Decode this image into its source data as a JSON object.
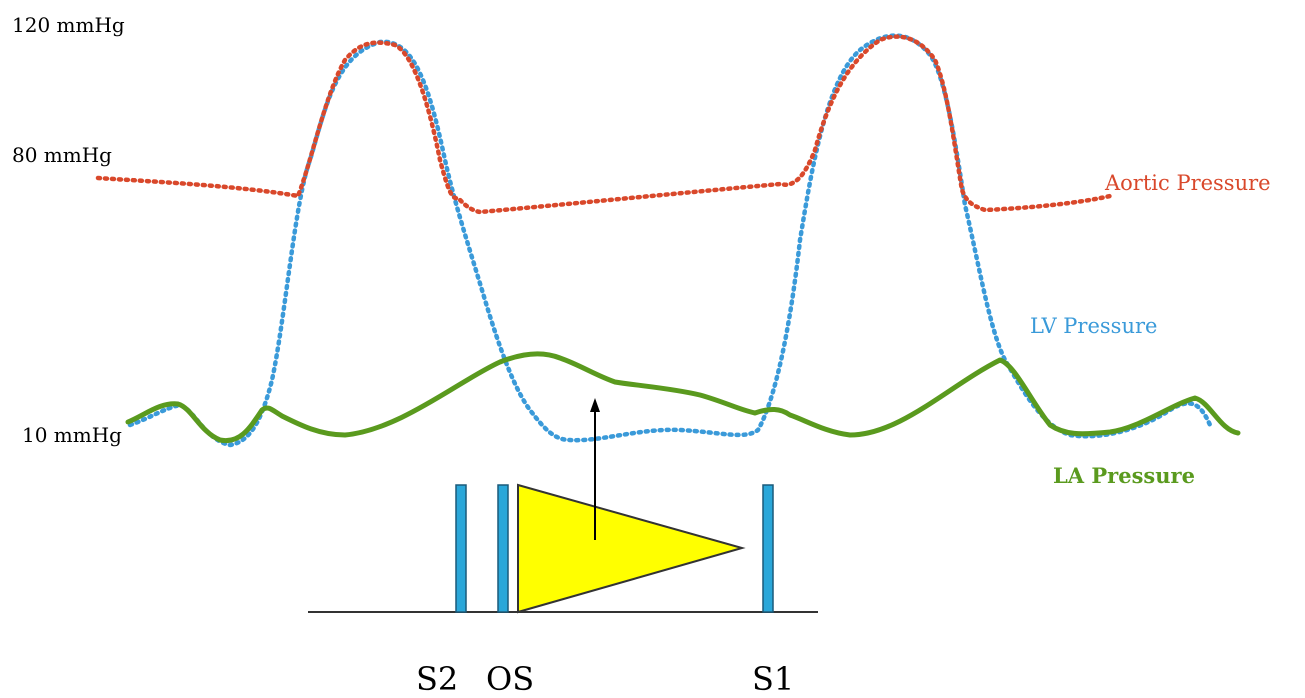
{
  "y_axis": {
    "high": "120 mmHg",
    "mid": "80 mmHg",
    "low": "10 mmHg"
  },
  "curves": {
    "aortic": {
      "label": "Aortic Pressure",
      "color": "#d9482b"
    },
    "lv": {
      "label": "LV Pressure",
      "color": "#3a9ad9"
    },
    "la": {
      "label": "LA Pressure",
      "color": "#5a9a1e"
    }
  },
  "heart_sounds": {
    "s2": "S2",
    "os": "OS",
    "s1": "S1",
    "bar_color": "#2aa7d9",
    "murmur_color": "#ffff00"
  }
}
